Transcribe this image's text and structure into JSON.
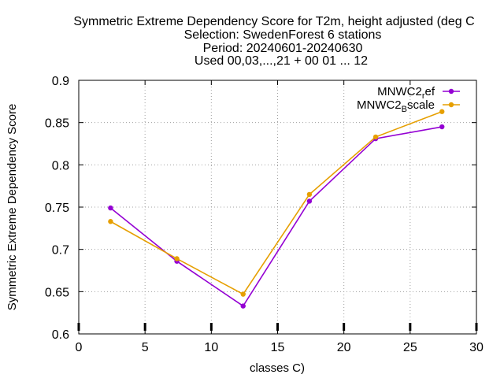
{
  "chart_data": {
    "type": "line",
    "title_lines": [
      "Symmetric Extreme Dependency Score  for T2m, height adjusted (deg C",
      "Selection: SwedenForest      6 stations",
      "Period: 20240601-20240630",
      "Used 00,03,...,21 + 00 01 ... 12"
    ],
    "xlabel": "classes C)",
    "ylabel": "Symmetric Extreme Dependency Score",
    "xlim": [
      0,
      30
    ],
    "ylim": [
      0.6,
      0.9
    ],
    "x_ticks": [
      0,
      5,
      10,
      15,
      20,
      25,
      30
    ],
    "y_ticks": [
      0.6,
      0.65,
      0.7,
      0.75,
      0.8,
      0.85,
      0.9
    ],
    "x_tick_labels": [
      "0",
      "5",
      "10",
      "15",
      "20",
      "25",
      "30"
    ],
    "y_tick_labels": [
      "0.6",
      "0.65",
      "0.7",
      "0.75",
      "0.8",
      "0.85",
      "0.9"
    ],
    "grid": true,
    "legend_position": "top-right",
    "series": [
      {
        "name_main": "MNWC2",
        "name_sub": "r",
        "name_rest": "ef",
        "color": "#9400d3",
        "x": [
          2.4,
          7.4,
          12.4,
          17.4,
          22.4,
          27.4
        ],
        "y": [
          0.749,
          0.686,
          0.633,
          0.757,
          0.831,
          0.845
        ]
      },
      {
        "name_main": "MNWC2",
        "name_sub": "B",
        "name_rest": "scale",
        "color": "#e69f00",
        "x": [
          2.4,
          7.4,
          12.4,
          17.4,
          22.4,
          27.4
        ],
        "y": [
          0.733,
          0.689,
          0.647,
          0.765,
          0.833,
          0.863
        ]
      }
    ]
  }
}
